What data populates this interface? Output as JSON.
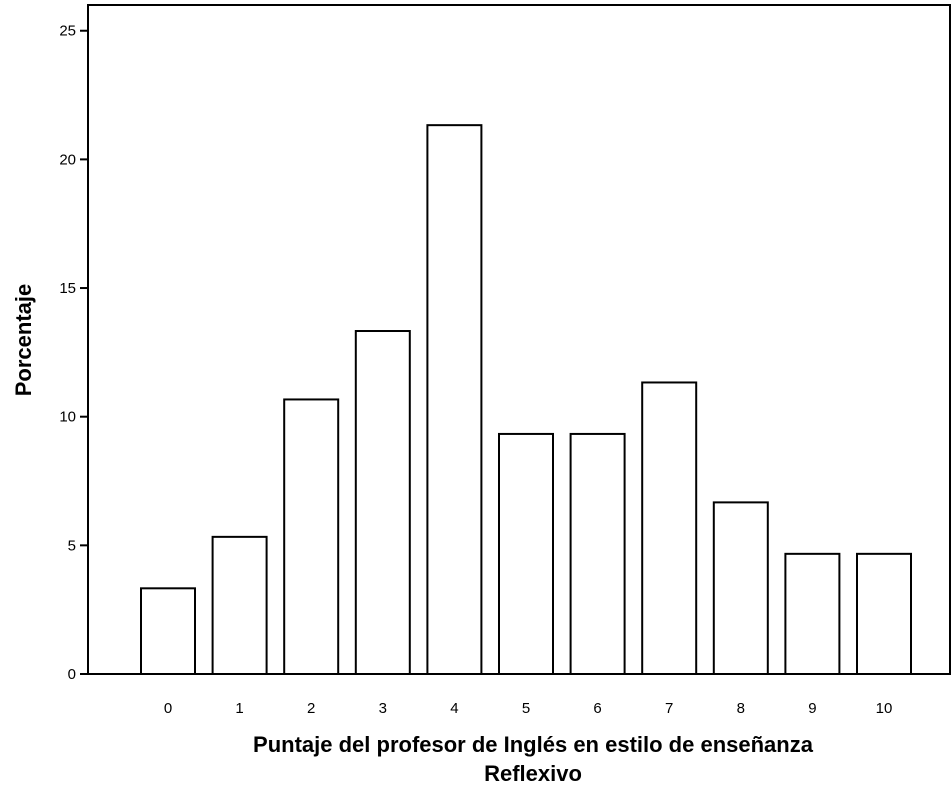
{
  "chart_data": {
    "type": "bar",
    "title": "",
    "xlabel_lines": [
      "Puntaje del profesor de Inglés en estilo de enseñanza",
      "Reflexivo"
    ],
    "ylabel": "Porcentaje",
    "categories": [
      "0",
      "1",
      "2",
      "3",
      "4",
      "5",
      "6",
      "7",
      "8",
      "9",
      "10"
    ],
    "values": [
      3.33,
      5.33,
      10.67,
      13.33,
      21.33,
      9.33,
      9.33,
      11.33,
      6.67,
      4.67,
      4.67
    ],
    "ylim": [
      0,
      26
    ],
    "yticks": [
      0,
      5,
      10,
      15,
      20,
      25
    ],
    "ytick_labels": [
      "0",
      "5",
      "10",
      "15",
      "20",
      "25"
    ],
    "grid": false,
    "legend": "none",
    "colors": {
      "bar_fill": "#ffffff",
      "bar_stroke": "#000000",
      "axis": "#000000"
    }
  }
}
